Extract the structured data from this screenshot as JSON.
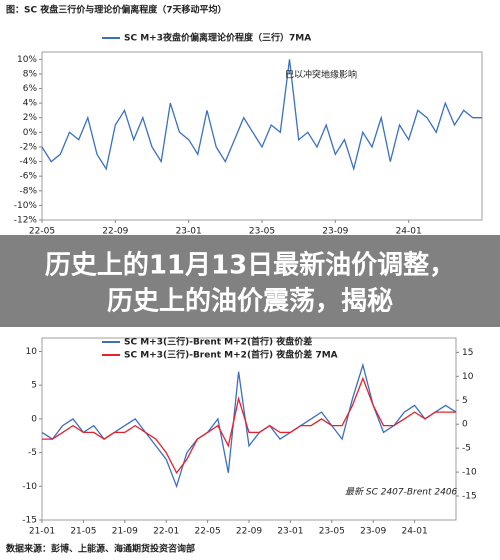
{
  "chart_data": [
    {
      "type": "line",
      "title": "图：SC 夜盘三行价与理论价偏离程度（7天移动平均）",
      "annotation": "巴以冲突地缘影响",
      "categories": [
        "22-05",
        null,
        null,
        null,
        null,
        null,
        null,
        null,
        "22-09",
        null,
        null,
        null,
        null,
        null,
        null,
        null,
        "23-01",
        null,
        null,
        null,
        null,
        null,
        null,
        null,
        "23-05",
        null,
        null,
        null,
        null,
        null,
        null,
        null,
        "23-09",
        null,
        null,
        null,
        null,
        null,
        null,
        null,
        "24-01",
        null,
        null,
        null,
        null,
        null,
        null,
        null,
        null
      ],
      "series": [
        {
          "name": "SC M+3夜盘价偏离理论价程度（三行）7MA",
          "color": "#3b6fc4",
          "values": [
            -2,
            -4,
            -3,
            0,
            -1,
            2,
            -3,
            -5,
            1,
            3,
            -1,
            2,
            -2,
            -4,
            4,
            0,
            -1,
            -3,
            3,
            -2,
            -4,
            -1,
            2,
            0,
            -2,
            1,
            0,
            10,
            -1,
            0,
            -2,
            1,
            -3,
            -1,
            -5,
            0,
            -2,
            2,
            -4,
            1,
            -1,
            3,
            2,
            0,
            4,
            1,
            3,
            2,
            2
          ]
        }
      ],
      "ylim": [
        -12,
        11
      ],
      "yticks": [
        {
          "value": -12,
          "label": "-12%"
        },
        {
          "value": -10,
          "label": "-10%"
        },
        {
          "value": -8,
          "label": "-8%"
        },
        {
          "value": -6,
          "label": "-6%"
        },
        {
          "value": -4,
          "label": "-4%"
        },
        {
          "value": -2,
          "label": "-2%"
        },
        {
          "value": 0,
          "label": "0%"
        },
        {
          "value": 2,
          "label": "2%"
        },
        {
          "value": 4,
          "label": "4%"
        },
        {
          "value": 6,
          "label": "6%"
        },
        {
          "value": 8,
          "label": "8%"
        },
        {
          "value": 10,
          "label": "10%"
        }
      ]
    },
    {
      "type": "line",
      "annotation": "最新 SC 2407-Brent 2406",
      "source": "数据来源：彭博、上能源、海通期货投资咨询部",
      "categories": [
        "21-01",
        null,
        null,
        null,
        "21-05",
        null,
        null,
        null,
        "21-09",
        null,
        null,
        null,
        "22-01",
        null,
        null,
        null,
        "22-05",
        null,
        null,
        null,
        "22-09",
        null,
        null,
        null,
        "23-01",
        null,
        null,
        null,
        "23-05",
        null,
        null,
        null,
        "23-09",
        null,
        null,
        null,
        "24-01",
        null,
        null,
        null,
        null
      ],
      "series": [
        {
          "name": "SC M+3(三行)-Brent M+2(首行) 夜盘价差",
          "color": "#3b6fc4",
          "values": [
            -2,
            -3,
            -1,
            0,
            -2,
            -1,
            -3,
            -2,
            -1,
            0,
            -2,
            -4,
            -6,
            -10,
            -5,
            -3,
            -2,
            0,
            -8,
            7,
            -4,
            -2,
            -1,
            -3,
            -2,
            -1,
            0,
            1,
            -1,
            -3,
            3,
            8,
            2,
            -2,
            -1,
            1,
            2,
            0,
            1,
            2,
            1
          ]
        },
        {
          "name": "SC M+3(三行)-Brent M+2(首行) 夜盘价差 7MA",
          "color": "#e8202a",
          "values": [
            -3,
            -3,
            -2,
            -1,
            -2,
            -2,
            -3,
            -2,
            -2,
            -1,
            -2,
            -3,
            -5,
            -8,
            -6,
            -3,
            -2,
            -1,
            -4,
            3,
            -2,
            -2,
            -1,
            -2,
            -2,
            -1,
            -1,
            0,
            -1,
            -1,
            2,
            6,
            2,
            -1,
            -1,
            0,
            1,
            0,
            1,
            1,
            1
          ]
        }
      ],
      "ylim": [
        -15,
        12
      ],
      "yticks": [
        -15,
        -10,
        -5,
        0,
        5,
        10
      ],
      "y2lim": [
        -20,
        18
      ],
      "y2ticks": [
        -15,
        -10,
        -5,
        0,
        5,
        10,
        15
      ]
    }
  ],
  "banner": {
    "lines": [
      "历史上的11月13日最新油价调整，",
      "历史上的油价震荡，揭秘"
    ]
  }
}
